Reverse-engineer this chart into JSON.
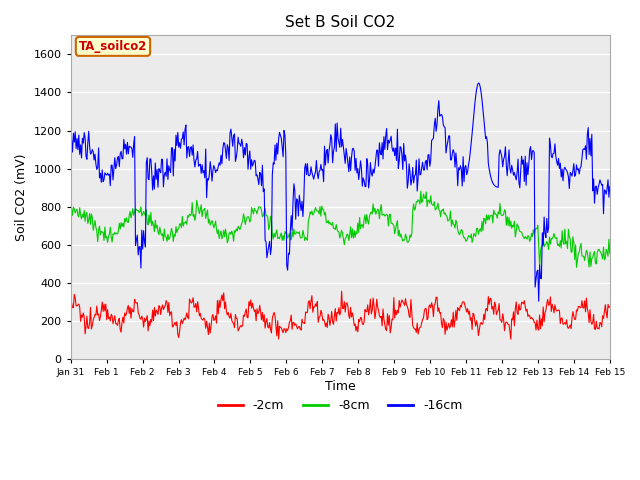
{
  "title": "Set B Soil CO2",
  "xlabel": "Time",
  "ylabel": "Soil CO2 (mV)",
  "ylim": [
    0,
    1700
  ],
  "yticks": [
    0,
    200,
    400,
    600,
    800,
    1000,
    1200,
    1400,
    1600
  ],
  "legend_labels": [
    "-2cm",
    "-8cm",
    "-16cm"
  ],
  "legend_colors": [
    "#ff0000",
    "#00cc00",
    "#0000ff"
  ],
  "tag_label": "TA_soilco2",
  "tag_bg": "#ffffcc",
  "tag_border": "#cc6600",
  "plot_bg": "#ebebeb",
  "xtick_labels": [
    "Jan 31",
    "Feb 1",
    "Feb 2",
    "Feb 3",
    "Feb 4",
    "Feb 5",
    "Feb 6",
    "Feb 7",
    "Feb 8",
    "Feb 9",
    "Feb 10",
    "Feb 11",
    "Feb 12",
    "Feb 13",
    "Feb 14",
    "Feb 15"
  ],
  "n_points": 600
}
